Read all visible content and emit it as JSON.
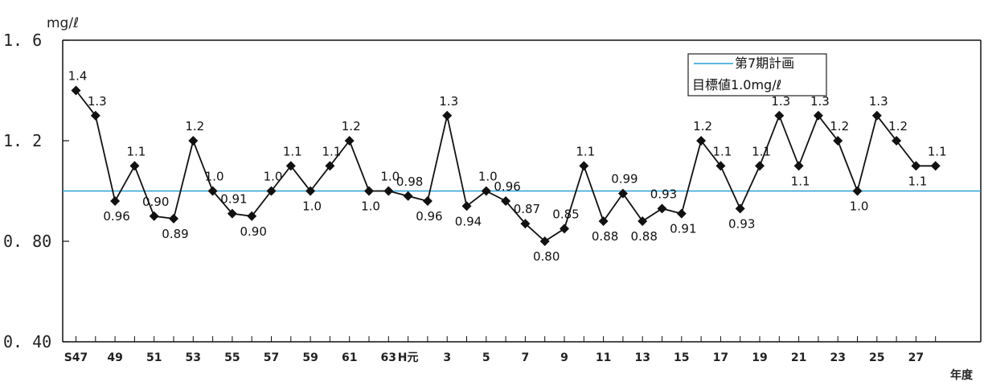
{
  "chart_data": {
    "type": "line",
    "y_unit": "mg/ℓ",
    "x_unit": "年度",
    "ylim": [
      0.4,
      1.6
    ],
    "y_ticks": [
      {
        "value": 1.6,
        "label": "1. 6"
      },
      {
        "value": 1.2,
        "label": "1. 2"
      },
      {
        "value": 0.8,
        "label": "0. 80"
      },
      {
        "value": 0.4,
        "label": "0. 40"
      }
    ],
    "x_tick_labels": [
      "S47",
      "49",
      "51",
      "53",
      "55",
      "57",
      "59",
      "61",
      "63",
      "H元",
      "3",
      "5",
      "7",
      "9",
      "11",
      "13",
      "15",
      "17",
      "19",
      "21",
      "23",
      "25",
      "27"
    ],
    "x_tick_indices": [
      0,
      2,
      4,
      6,
      8,
      10,
      12,
      14,
      16,
      17,
      19,
      21,
      23,
      25,
      27,
      29,
      31,
      33,
      35,
      37,
      39,
      41,
      43
    ],
    "series": [
      {
        "values": [
          1.4,
          1.3,
          0.96,
          1.1,
          0.9,
          0.89,
          1.2,
          1.0,
          0.91,
          0.9,
          1.0,
          1.1,
          1.0,
          1.1,
          1.2,
          1.0,
          1.0,
          0.98,
          0.96,
          1.3,
          0.94,
          1.0,
          0.96,
          0.87,
          0.8,
          0.85,
          1.1,
          0.88,
          0.99,
          0.88,
          0.93,
          0.91,
          1.2,
          1.1,
          0.93,
          1.1,
          1.3,
          1.1,
          1.3,
          1.2,
          1.0,
          1.3,
          1.2,
          1.1,
          1.1
        ]
      }
    ],
    "data_labels": [
      "1.4",
      "1.3",
      "0.96",
      "1.1",
      "0.90",
      "0.89",
      "1.2",
      "1.0",
      "0.91",
      "0.90",
      "1.0",
      "1.1",
      "1.0",
      "1.1",
      "1.2",
      "1.0",
      "1.0",
      "0.98",
      "0.96",
      "1.3",
      "0.94",
      "1.0",
      "0.96",
      "0.87",
      "0.80",
      "0.85",
      "1.1",
      "0.88",
      "0.99",
      "0.88",
      "0.93",
      "0.91",
      "1.2",
      "1.1",
      "0.93",
      "1.1",
      "1.3",
      "1.1",
      "1.3",
      "1.2",
      "1.0",
      "1.3",
      "1.2",
      "1.1",
      "1.1"
    ],
    "reference_line": {
      "value": 1.0,
      "color": "#2a9fd6"
    },
    "legend": {
      "line1": "第7期計画",
      "line2": "目標値1.0mg/ℓ",
      "position": "top-right"
    },
    "series_color": "#111111",
    "grid": false
  }
}
